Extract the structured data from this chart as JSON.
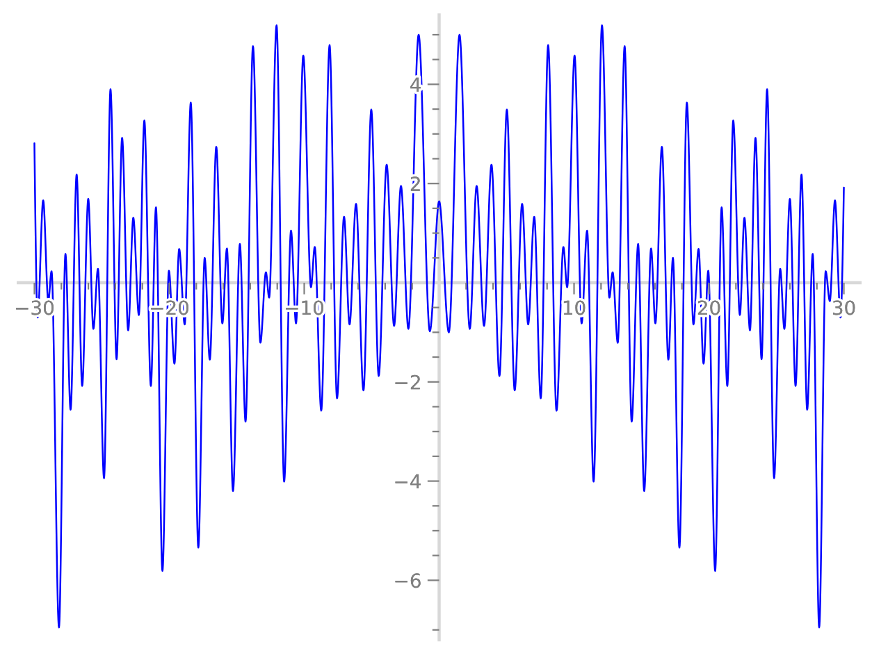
{
  "chart_data": {
    "type": "line",
    "color": "#0000ff",
    "x": [
      -30.0,
      -29.76,
      -29.35,
      -28.97,
      -28.73,
      -28.18,
      -27.7,
      -27.32,
      -26.87,
      -26.46,
      -26.01,
      -25.63,
      -25.29,
      -24.84,
      -24.36,
      -23.91,
      -23.5,
      -23.05,
      -22.67,
      -22.26,
      -21.85,
      -21.37,
      -20.99,
      -20.51,
      -20.03,
      -19.62,
      -19.27,
      -18.86,
      -18.41,
      -17.85,
      -17.38,
      -17.0,
      -16.52,
      -16.07,
      -15.73,
      -15.28,
      -14.77,
      -14.35,
      -13.8,
      -13.25,
      -12.84,
      -12.6,
      -12.05,
      -11.49,
      -10.98,
      -10.61,
      -10.07,
      -9.5,
      -9.22,
      -8.74,
      -8.12,
      -7.57,
      -7.05,
      -6.64,
      -6.16,
      -5.61,
      -5.03,
      -4.48,
      -3.89,
      -3.34,
      -2.83,
      -2.28,
      -1.52,
      -0.69,
      0.0,
      0.72,
      1.51,
      2.27,
      2.78,
      3.33,
      3.88,
      4.47,
      5.02,
      5.6,
      6.15,
      6.6,
      7.05,
      7.53,
      8.08,
      8.7,
      9.21,
      9.49,
      10.04,
      10.56,
      10.97,
      11.45,
      12.07,
      12.62,
      12.86,
      13.24,
      13.75,
      14.27,
      14.75,
      15.2,
      15.71,
      16.03,
      16.51,
      16.99,
      17.33,
      17.81,
      18.36,
      18.85,
      19.23,
      19.6,
      19.95,
      20.46,
      20.94,
      21.36,
      21.8,
      22.29,
      22.63,
      23.04,
      23.45,
      23.9,
      24.31,
      24.83,
      25.28,
      25.59,
      26.0,
      26.42,
      26.86,
      27.28,
      27.69,
      28.17,
      28.65,
      28.96,
      29.34,
      29.75,
      30.0
    ],
    "values": [
      2.81,
      -0.7,
      1.66,
      -0.37,
      0.23,
      -6.95,
      0.58,
      -2.56,
      2.18,
      -2.08,
      1.69,
      -0.93,
      0.28,
      -3.94,
      3.9,
      -1.54,
      2.92,
      -0.96,
      1.31,
      -0.65,
      3.27,
      -2.08,
      1.52,
      -5.81,
      0.24,
      -1.63,
      0.68,
      -0.84,
      3.63,
      -5.34,
      0.5,
      -1.55,
      2.74,
      -0.82,
      0.69,
      -4.2,
      0.78,
      -2.8,
      4.77,
      -1.21,
      0.21,
      -0.3,
      5.19,
      -4.01,
      1.05,
      -0.82,
      4.58,
      -0.09,
      0.72,
      -2.58,
      4.79,
      -2.33,
      1.33,
      -0.84,
      1.59,
      -2.17,
      3.49,
      -1.88,
      2.38,
      -0.87,
      1.95,
      -0.93,
      5.0,
      -0.98,
      1.64,
      -1.0,
      5.0,
      -0.93,
      1.95,
      -0.87,
      2.38,
      -1.88,
      3.49,
      -2.17,
      1.59,
      -0.84,
      1.33,
      -2.33,
      4.79,
      -2.58,
      0.72,
      -0.09,
      4.58,
      -0.82,
      1.05,
      -4.01,
      5.19,
      -0.3,
      0.21,
      -1.21,
      4.77,
      -2.8,
      0.78,
      -4.2,
      0.69,
      -0.82,
      2.74,
      -1.55,
      0.5,
      -5.34,
      3.63,
      -0.84,
      0.68,
      -1.63,
      0.24,
      -5.81,
      1.52,
      -2.08,
      3.27,
      -0.65,
      1.31,
      -0.96,
      2.92,
      -1.54,
      3.9,
      -3.94,
      0.28,
      -0.93,
      1.69,
      -2.08,
      2.18,
      -2.56,
      0.58,
      -6.95,
      0.23,
      -0.37,
      1.66,
      -0.7,
      1.92
    ],
    "xlim": [
      -31.2,
      31.2
    ],
    "ylim": [
      -7.2,
      5.4
    ],
    "xticks": [
      {
        "value": -30,
        "label": "−30"
      },
      {
        "value": -28,
        "label": null
      },
      {
        "value": -26,
        "label": null
      },
      {
        "value": -24,
        "label": null
      },
      {
        "value": -22,
        "label": null
      },
      {
        "value": -20,
        "label": "−20"
      },
      {
        "value": -18,
        "label": null
      },
      {
        "value": -16,
        "label": null
      },
      {
        "value": -14,
        "label": null
      },
      {
        "value": -12,
        "label": null
      },
      {
        "value": -10,
        "label": "−10"
      },
      {
        "value": -8,
        "label": null
      },
      {
        "value": -6,
        "label": null
      },
      {
        "value": -4,
        "label": null
      },
      {
        "value": -2,
        "label": null
      },
      {
        "value": 2,
        "label": null
      },
      {
        "value": 4,
        "label": null
      },
      {
        "value": 6,
        "label": null
      },
      {
        "value": 8,
        "label": null
      },
      10,
      {
        "value": 12,
        "label": null
      },
      {
        "value": 14,
        "label": null
      },
      {
        "value": 16,
        "label": null
      },
      {
        "value": 18,
        "label": null
      },
      20,
      {
        "value": 22,
        "label": null
      },
      {
        "value": 24,
        "label": null
      },
      {
        "value": 26,
        "label": null
      },
      {
        "value": 28,
        "label": null
      },
      30
    ],
    "yticks": [
      {
        "value": -7,
        "label": null
      },
      {
        "value": -6,
        "label": "−6"
      },
      {
        "value": -5.5,
        "label": null
      },
      {
        "value": -5,
        "label": null
      },
      {
        "value": -4.5,
        "label": null
      },
      {
        "value": -4,
        "label": "−4"
      },
      {
        "value": -3.5,
        "label": null
      },
      {
        "value": -3,
        "label": null
      },
      {
        "value": -2.5,
        "label": null
      },
      {
        "value": -2,
        "label": "−2"
      },
      {
        "value": -1.5,
        "label": null
      },
      {
        "value": -1,
        "label": null
      },
      {
        "value": -0.5,
        "label": null
      },
      {
        "value": 0.5,
        "label": null
      },
      {
        "value": 1,
        "label": null
      },
      {
        "value": 1.5,
        "label": null
      },
      2,
      {
        "value": 2.5,
        "label": null
      },
      {
        "value": 3,
        "label": null
      },
      {
        "value": 3.5,
        "label": null
      },
      4,
      {
        "value": 4.5,
        "label": null
      },
      {
        "value": 5,
        "label": null
      }
    ]
  }
}
